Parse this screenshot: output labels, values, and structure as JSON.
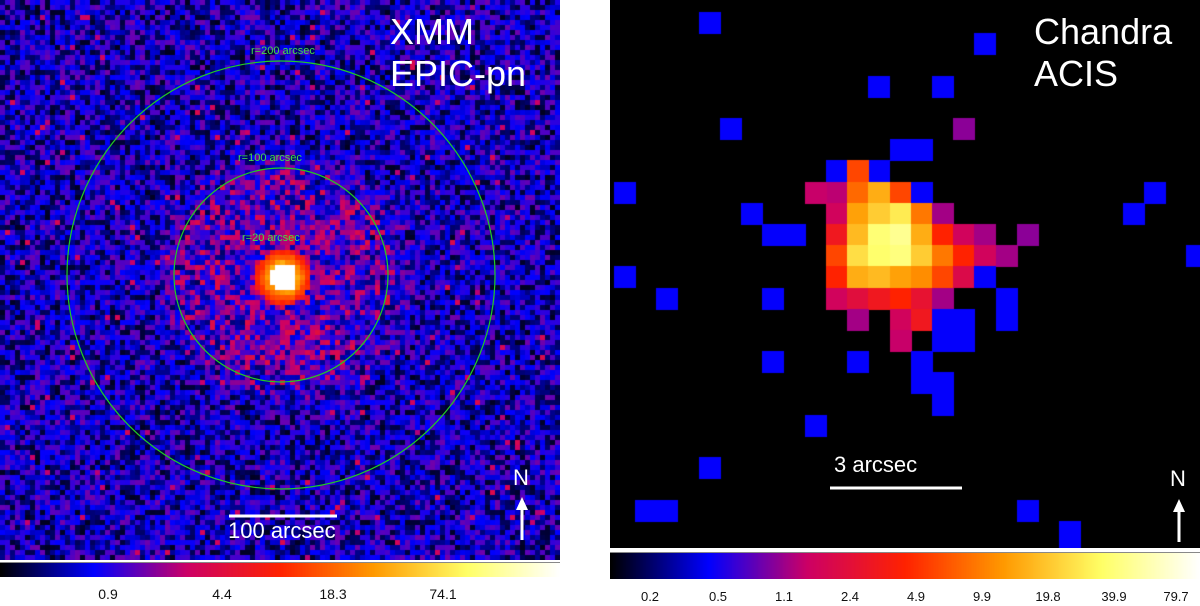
{
  "left_image": {
    "title_line1": "XMM",
    "title_line2": "EPIC-pn",
    "circle_labels": [
      "r=200 arcsec",
      "r=100 arcsec",
      "r=20 arcsec"
    ],
    "scale_bar_label": "100 arcsec",
    "north_label": "N",
    "colorbar_ticks": [
      "0.9",
      "4.4",
      "18.3",
      "74.1"
    ],
    "circle_color": "#22cc22"
  },
  "right_image": {
    "title_line1": "Chandra",
    "title_line2": "ACIS",
    "scale_bar_label": "3 arcsec",
    "north_label": "N",
    "colorbar_ticks": [
      "0.2",
      "0.5",
      "1.1",
      "2.4",
      "4.9",
      "9.9",
      "19.8",
      "39.9",
      "79.7"
    ]
  },
  "colormap": [
    "#000000",
    "#0000ff",
    "#cc0066",
    "#ff2200",
    "#ff9900",
    "#ffff66",
    "#ffffff"
  ],
  "icons": {
    "north_arrow": "arrow-up-icon"
  }
}
